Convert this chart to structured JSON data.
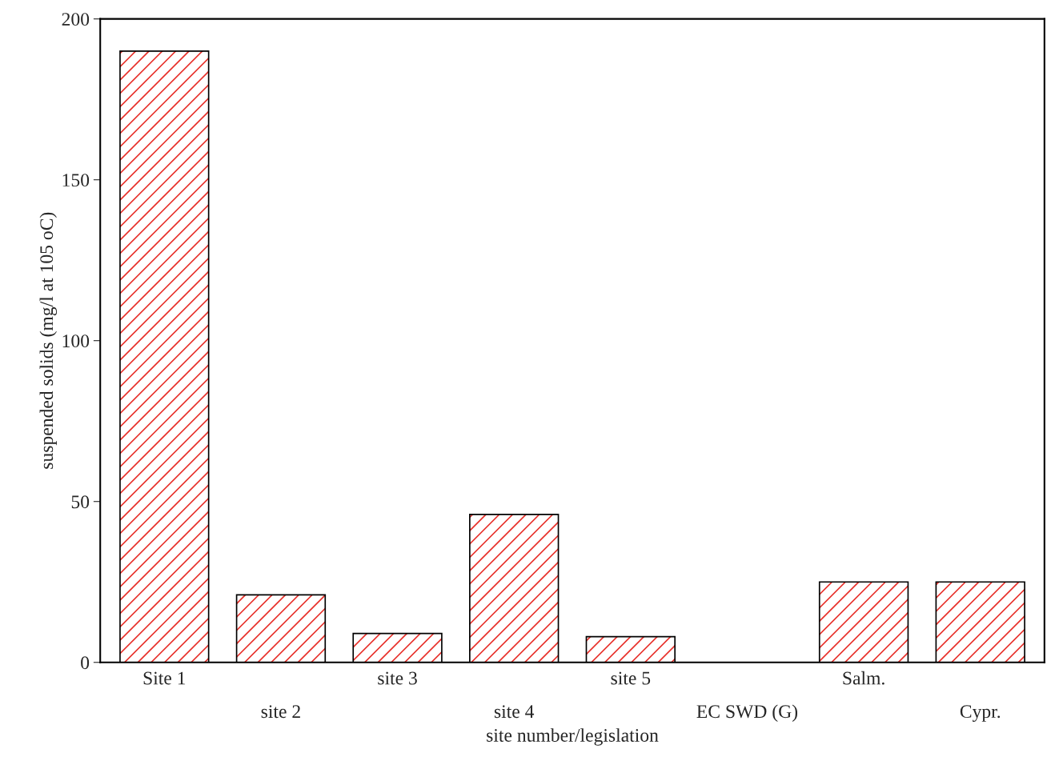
{
  "chart_data": {
    "type": "bar",
    "xlabel": "site number/legislation",
    "ylabel": "suspended solids (mg/l at 105 oC)",
    "categories": [
      "Site 1",
      "site 2",
      "site 3",
      "site 4",
      "site 5",
      "EC SWD (G)",
      "Salm.",
      "Cypr."
    ],
    "values": [
      190,
      21,
      9,
      46,
      8,
      null,
      25,
      25
    ],
    "color": "#e8302a",
    "ylim": [
      0,
      200
    ],
    "yticks": [
      0,
      50,
      100,
      150,
      200
    ],
    "grid": false,
    "legend": false
  }
}
